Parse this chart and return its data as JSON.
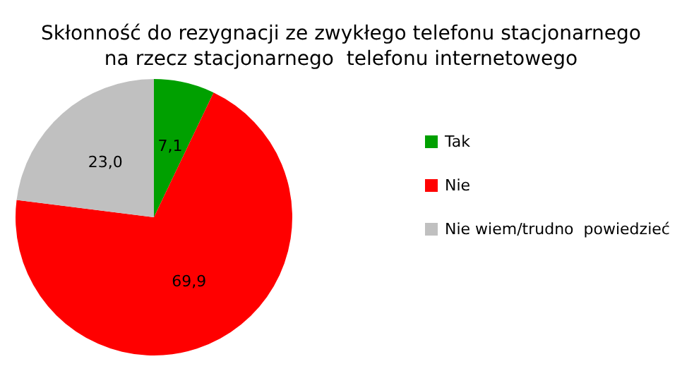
{
  "chart_data": {
    "type": "pie",
    "title": "Skłonność do rezygnacji ze zwykłego telefonu stacjonarnego\nna rzecz stacjonarnego  telefonu internetowego",
    "categories": [
      "Tak",
      "Nie",
      "Nie wiem/trudno  powiedzieć"
    ],
    "values": [
      7.1,
      69.9,
      23.0
    ],
    "colors": [
      "#00a000",
      "#ff0000",
      "#c0c0c0"
    ],
    "value_labels": [
      "7,1",
      "69,9",
      "23,0"
    ],
    "legend": "right"
  }
}
